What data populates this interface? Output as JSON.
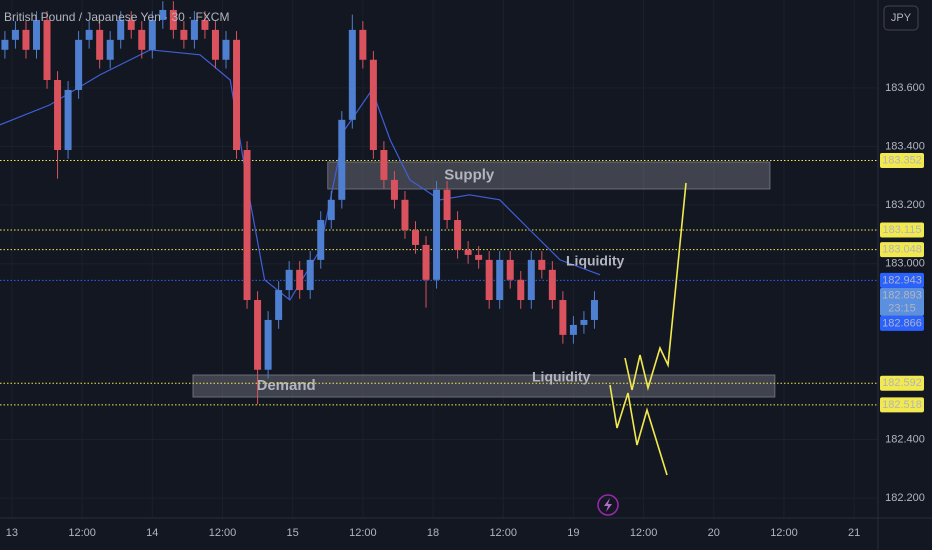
{
  "chart_data": {
    "type": "candlestick",
    "title": "British Pound / Japanese Yen · 30 · FXCM",
    "currency": "JPY",
    "xtick_labels": [
      "13",
      "12:00",
      "14",
      "12:00",
      "15",
      "12:00",
      "18",
      "12:00",
      "19",
      "12:00",
      "20",
      "12:00",
      "21"
    ],
    "xlim": [
      -0.17,
      12.34
    ],
    "ylim": [
      182.132,
      183.9
    ],
    "yticks": [
      {
        "value": 183.6,
        "label": "183.600"
      },
      {
        "value": 183.4,
        "label": "183.400"
      },
      {
        "value": 183.2,
        "label": "183.200"
      },
      {
        "value": 183.0,
        "label": "183.000"
      },
      {
        "value": 182.4,
        "label": "182.400"
      },
      {
        "value": 182.2,
        "label": "182.200"
      }
    ],
    "up_color": "#4f7fd0",
    "down_color": "#d9525e",
    "x": [
      -0.1,
      0.05,
      0.2,
      0.35,
      0.5,
      0.65,
      0.8,
      0.95,
      1.1,
      1.25,
      1.4,
      1.55,
      1.7,
      1.85,
      2.0,
      2.15,
      2.3,
      2.45,
      2.6,
      2.75,
      2.9,
      3.05,
      3.2,
      3.35,
      3.5,
      3.65,
      3.8,
      3.95,
      4.1,
      4.25,
      4.4,
      4.55,
      4.7,
      4.85,
      5.0,
      5.15,
      5.3,
      5.45,
      5.6,
      5.75,
      5.9,
      6.05,
      6.2,
      6.35,
      6.5,
      6.65,
      6.8,
      6.95,
      7.1,
      7.25,
      7.4,
      7.55,
      7.7,
      7.85,
      8.0,
      8.15,
      8.3
    ],
    "open": [
      183.73,
      183.764,
      183.798,
      183.73,
      183.832,
      183.627,
      183.388,
      183.593,
      183.764,
      183.798,
      183.696,
      183.764,
      183.832,
      183.798,
      183.73,
      183.832,
      183.866,
      183.798,
      183.764,
      183.832,
      183.798,
      183.696,
      183.764,
      183.388,
      182.876,
      182.638,
      182.808,
      182.91,
      182.979,
      182.91,
      183.013,
      183.149,
      183.218,
      183.491,
      183.798,
      183.696,
      183.388,
      183.286,
      183.218,
      183.115,
      183.064,
      182.945,
      183.252,
      183.149,
      183.047,
      183.03,
      183.013,
      182.876,
      183.013,
      182.945,
      182.876,
      183.013,
      182.979,
      182.876,
      182.757,
      182.791,
      182.808
    ],
    "high": [
      183.794,
      183.828,
      183.828,
      183.862,
      183.862,
      183.657,
      183.623,
      183.794,
      183.828,
      183.828,
      183.794,
      183.862,
      183.862,
      183.828,
      183.862,
      183.896,
      183.896,
      183.828,
      183.862,
      183.862,
      183.828,
      183.794,
      183.794,
      183.418,
      182.906,
      182.838,
      182.94,
      183.009,
      183.009,
      183.043,
      183.179,
      183.248,
      183.521,
      183.85,
      183.828,
      183.726,
      183.418,
      183.316,
      183.248,
      183.145,
      183.094,
      183.282,
      183.282,
      183.179,
      183.077,
      183.06,
      183.043,
      183.043,
      183.043,
      182.975,
      183.043,
      183.043,
      183.009,
      182.906,
      182.821,
      182.838,
      182.906
    ],
    "low": [
      183.7,
      183.734,
      183.7,
      183.7,
      183.597,
      183.29,
      183.358,
      183.563,
      183.734,
      183.666,
      183.666,
      183.734,
      183.768,
      183.7,
      183.7,
      183.802,
      183.768,
      183.734,
      183.734,
      183.768,
      183.666,
      183.666,
      183.358,
      182.846,
      182.52,
      182.608,
      182.778,
      182.88,
      182.88,
      182.88,
      182.983,
      183.119,
      183.188,
      183.461,
      183.666,
      183.358,
      183.256,
      183.188,
      183.085,
      183.034,
      182.85,
      182.915,
      183.119,
      183.017,
      183.0,
      182.983,
      182.846,
      182.846,
      182.915,
      182.846,
      182.846,
      182.949,
      182.846,
      182.727,
      182.727,
      182.761,
      182.778
    ],
    "close": [
      183.764,
      183.798,
      183.73,
      183.832,
      183.627,
      183.388,
      183.593,
      183.764,
      183.798,
      183.696,
      183.764,
      183.832,
      183.798,
      183.73,
      183.832,
      183.866,
      183.798,
      183.764,
      183.832,
      183.798,
      183.696,
      183.764,
      183.388,
      182.876,
      182.638,
      182.808,
      182.91,
      182.979,
      182.91,
      183.013,
      183.149,
      183.218,
      183.491,
      183.798,
      183.696,
      183.388,
      183.286,
      183.218,
      183.115,
      183.064,
      182.945,
      183.252,
      183.149,
      183.047,
      183.03,
      183.013,
      182.876,
      183.013,
      182.945,
      182.876,
      183.013,
      182.979,
      182.876,
      182.757,
      182.791,
      182.808,
      182.876
    ],
    "moving_average": {
      "color": "#3f5fd8",
      "x": [
        -0.17,
        0.54,
        1.25,
        1.97,
        2.68,
        3.11,
        3.39,
        3.6,
        3.96,
        4.39,
        4.74,
        5.13,
        5.39,
        5.67,
        6.1,
        6.52,
        6.95,
        7.38,
        7.81,
        8.38
      ],
      "values": [
        183.474,
        183.542,
        183.644,
        183.73,
        183.713,
        183.627,
        183.218,
        182.945,
        182.876,
        183.047,
        183.457,
        183.593,
        183.422,
        183.286,
        183.218,
        183.235,
        183.218,
        183.115,
        183.013,
        182.962
      ]
    },
    "zones": [
      {
        "label": "Supply",
        "x": [
          4.5,
          10.8
        ],
        "y": [
          183.255,
          183.347
        ]
      },
      {
        "label": "Demand",
        "x": [
          2.58,
          10.87
        ],
        "y": [
          182.545,
          182.62
        ]
      }
    ],
    "annotations": [
      "Liquidity",
      "Liquidity"
    ],
    "price_levels": [
      {
        "value": 183.352,
        "color": "#f2e94e",
        "text_color": "#000000",
        "line": true
      },
      {
        "value": 183.115,
        "color": "#f2e94e",
        "text_color": "#000000",
        "line": true
      },
      {
        "value": 183.048,
        "color": "#f2e94e",
        "text_color": "#000000",
        "line": true
      },
      {
        "value": 182.943,
        "color": "#2962ff",
        "text_color": "#ffffff",
        "line": true
      },
      {
        "value": 182.893,
        "color": "#5b8fe0",
        "text_color": "#ffffff",
        "line": false,
        "countdown": "23:15"
      },
      {
        "value": 182.866,
        "color": "#2962ff",
        "text_color": "#ffffff",
        "line": false
      },
      {
        "value": 182.592,
        "color": "#f2e94e",
        "text_color": "#000000",
        "line": true
      },
      {
        "value": 182.518,
        "color": "#f2e94e",
        "text_color": "#000000",
        "line": true
      }
    ]
  }
}
